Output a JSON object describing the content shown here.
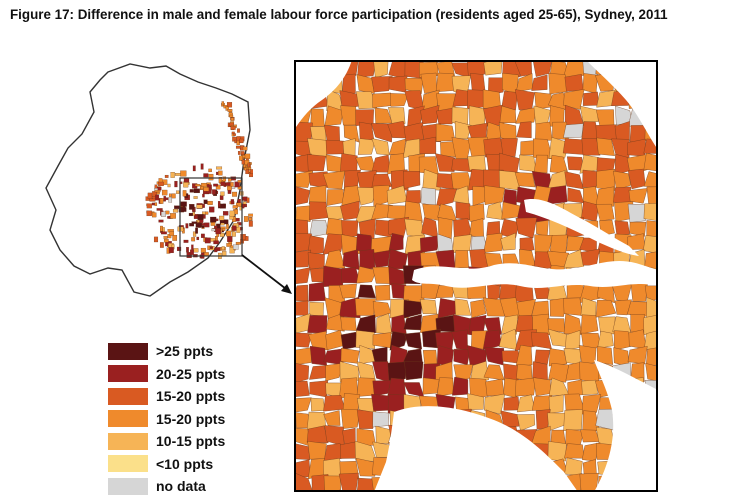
{
  "figure": {
    "title": "Figure 17: Difference in male and female labour force participation (residents aged 25-65), Sydney, 2011"
  },
  "legend": {
    "items": [
      {
        "label": ">25 ppts",
        "color": "#5a1414"
      },
      {
        "label": "20-25 ppts",
        "color": "#9a2020"
      },
      {
        "label": "15-20 ppts",
        "color": "#d95a22"
      },
      {
        "label": "15-20 ppts",
        "color": "#ef8a2c"
      },
      {
        "label": "10-15 ppts",
        "color": "#f6b456"
      },
      {
        "label": "<10 ppts",
        "color": "#fbe08a"
      },
      {
        "label": "no data",
        "color": "#d6d6d6"
      }
    ]
  },
  "colors": {
    "water": "#ffffff",
    "boundary": "#6b3a1a",
    "frame": "#000000"
  }
}
